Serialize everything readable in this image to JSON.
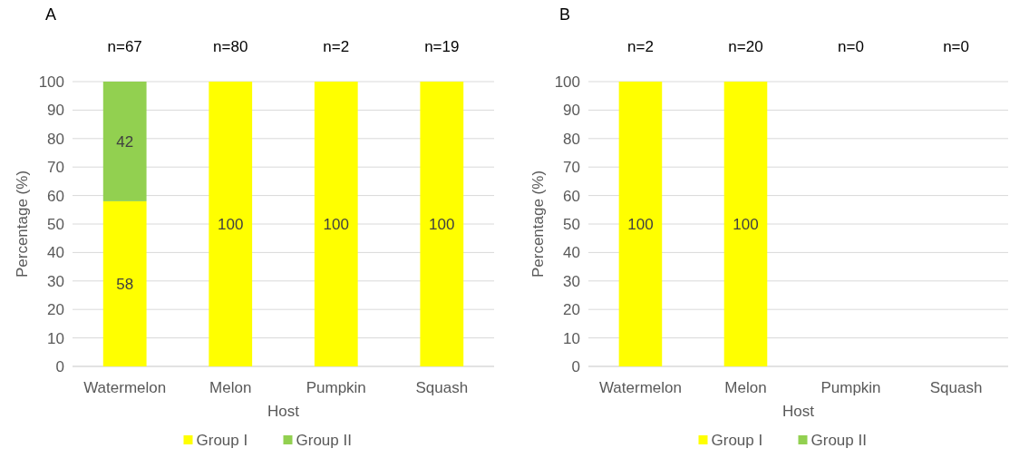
{
  "chart_data": [
    {
      "type": "bar",
      "title": "A",
      "xlabel": "Host",
      "ylabel": "Percentage (%)",
      "stacked": true,
      "categories": [
        "Watermelon",
        "Melon",
        "Pumpkin",
        "Squash"
      ],
      "series": [
        {
          "name": "Group I",
          "color": "#ffff00",
          "values": [
            58,
            100,
            100,
            100
          ],
          "value_labels": [
            "58",
            "100",
            "100",
            "100"
          ]
        },
        {
          "name": "Group II",
          "color": "#92d050",
          "values": [
            42,
            0,
            0,
            0
          ],
          "value_labels": [
            "42",
            null,
            null,
            null
          ]
        }
      ],
      "ylim": [
        0,
        100
      ],
      "yticks": [
        0,
        10,
        20,
        30,
        40,
        50,
        60,
        70,
        80,
        90,
        100
      ],
      "grid": "y",
      "legend": "bottom",
      "annotations": [
        "n=67",
        "n=80",
        "n=2",
        "n=19"
      ]
    },
    {
      "type": "bar",
      "title": "B",
      "xlabel": "Host",
      "ylabel": "Percentage (%)",
      "stacked": true,
      "categories": [
        "Watermelon",
        "Melon",
        "Pumpkin",
        "Squash"
      ],
      "series": [
        {
          "name": "Group I",
          "color": "#ffff00",
          "values": [
            100,
            100,
            0,
            0
          ],
          "value_labels": [
            "100",
            "100",
            null,
            null
          ]
        },
        {
          "name": "Group II",
          "color": "#92d050",
          "values": [
            0,
            0,
            0,
            0
          ],
          "value_labels": [
            null,
            null,
            null,
            null
          ]
        }
      ],
      "ylim": [
        0,
        100
      ],
      "yticks": [
        0,
        10,
        20,
        30,
        40,
        50,
        60,
        70,
        80,
        90,
        100
      ],
      "grid": "y",
      "legend": "bottom",
      "annotations": [
        "n=2",
        "n=20",
        "n=0",
        "n=0"
      ]
    }
  ]
}
